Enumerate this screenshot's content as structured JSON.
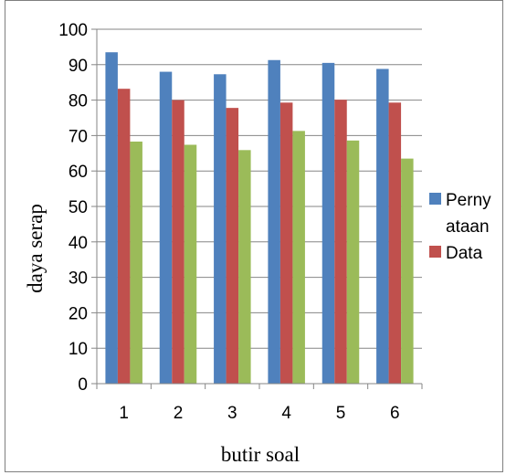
{
  "chart_data": {
    "type": "bar",
    "title": "",
    "xlabel": "butir soal",
    "ylabel": "daya serap",
    "categories": [
      "1",
      "2",
      "3",
      "4",
      "5",
      "6"
    ],
    "ylim": [
      0,
      100
    ],
    "yticks": [
      "0",
      "10",
      "20",
      "30",
      "40",
      "50",
      "60",
      "70",
      "80",
      "90",
      "100"
    ],
    "grid": true,
    "legend_position": "right",
    "series": [
      {
        "name": "Perny ataan",
        "legend_lines": [
          "Perny",
          "ataan"
        ],
        "color": "#4f81bd",
        "values": [
          93.5,
          88,
          87.3,
          91.3,
          90.5,
          88.8
        ]
      },
      {
        "name": "Data",
        "legend_lines": [
          "Data"
        ],
        "color": "#c0504d",
        "values": [
          83.2,
          80,
          77.8,
          79.3,
          80.1,
          79.3
        ]
      },
      {
        "name": "",
        "legend_lines": [],
        "color": "#9bbb59",
        "values": [
          68.3,
          67.4,
          65.9,
          71.3,
          68.6,
          63.5
        ]
      }
    ]
  }
}
